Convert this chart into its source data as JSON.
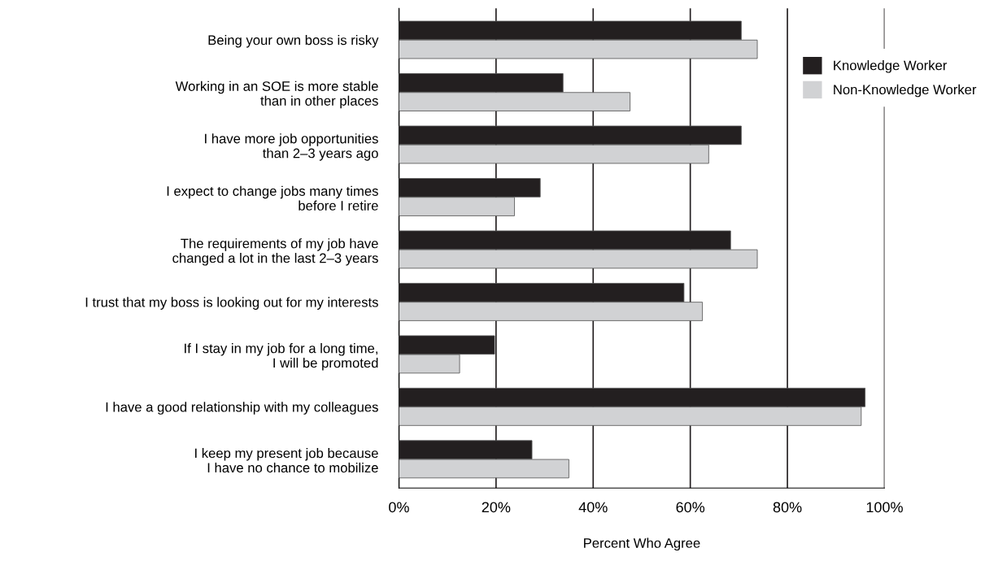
{
  "chart_data": {
    "type": "bar",
    "orientation": "horizontal",
    "categories": [
      "Being your own boss is risky",
      "Working in an SOE is more stable\nthan in other places",
      "I have more job opportunities\nthan 2–3 years ago",
      "I expect to change jobs many times\nbefore I retire",
      "The requirements of my job have\nchanged a lot in the last 2–3 years",
      "I trust that my boss is looking out for my interests",
      "If I stay in my job for a long time,\nI will be promoted",
      "I have a good relationship with my colleagues",
      "I keep my present job because\nI have no chance to mobilize"
    ],
    "series": [
      {
        "name": "Knowledge Worker",
        "color": "#231f20",
        "values": [
          70.5,
          33.8,
          70.5,
          29.1,
          68.3,
          58.7,
          19.7,
          96.0,
          27.4
        ]
      },
      {
        "name": "Non-Knowledge Worker",
        "color": "#d1d2d4",
        "values": [
          73.8,
          47.6,
          63.8,
          23.8,
          73.8,
          62.5,
          12.5,
          95.2,
          35.0
        ]
      }
    ],
    "xlabel": "Percent Who Agree",
    "xlim": [
      0,
      100
    ],
    "xticks": [
      {
        "value": 0,
        "label": "0%"
      },
      {
        "value": 20,
        "label": "20%"
      },
      {
        "value": 40,
        "label": "40%"
      },
      {
        "value": 60,
        "label": "60%"
      },
      {
        "value": 80,
        "label": "80%"
      },
      {
        "value": 100,
        "label": "100%"
      }
    ],
    "grid": "x",
    "legend": "top right"
  }
}
